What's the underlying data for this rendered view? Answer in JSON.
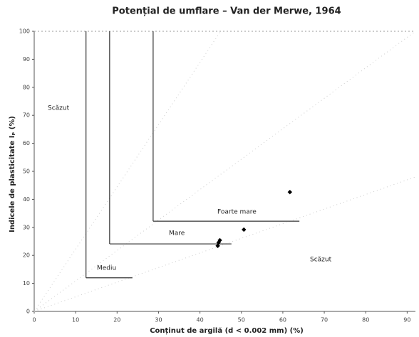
{
  "chart_data": {
    "type": "scatter",
    "title": "Potențial de umflare – Van der Merwe, 1964",
    "xlabel": "Conținut de argilă (d < 0.002 mm) (%)",
    "ylabel": "Indicele de plasticitate Iₚ (%)",
    "x": [
      44.5,
      44.3,
      44.8,
      50.6,
      61.7
    ],
    "y": [
      24.6,
      23.4,
      25.4,
      29.2,
      42.6
    ],
    "color": "#000000",
    "xlim": [
      0,
      92
    ],
    "ylim": [
      0,
      100
    ],
    "xticks": [
      0,
      10,
      20,
      30,
      40,
      50,
      60,
      70,
      80,
      90
    ],
    "yticks": [
      0,
      10,
      20,
      30,
      40,
      50,
      60,
      70,
      80,
      90,
      100
    ],
    "grid": false,
    "regions": [
      {
        "label": "Mediu",
        "x": 12.5,
        "y": 12,
        "x_end": 23.7
      },
      {
        "label": "Mare",
        "x": 18.2,
        "y": 24.1,
        "x_end": 47.6
      },
      {
        "label": "Foarte mare",
        "x": 28.7,
        "y": 32.2,
        "x_end": 64
      }
    ],
    "annotations": [
      "Scăzut",
      "Scăzut"
    ]
  }
}
